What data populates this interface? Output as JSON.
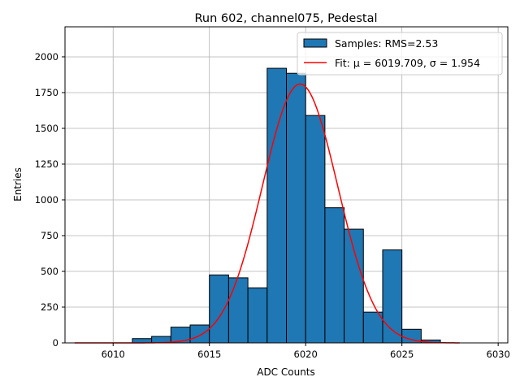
{
  "chart_data": {
    "type": "bar",
    "title": "Run 602, channel075, Pedestal",
    "xlabel": "ADC Counts",
    "ylabel": "Entries",
    "xlim": [
      6007.5,
      6030.5
    ],
    "ylim": [
      0,
      2210
    ],
    "xticks": [
      6010,
      6015,
      6020,
      6025,
      6030
    ],
    "yticks": [
      0,
      250,
      500,
      750,
      1000,
      1250,
      1500,
      1750,
      2000
    ],
    "grid": true,
    "legend_position": "top-right",
    "histogram": {
      "name": "Samples: RMS=2.53",
      "color": "#1f77b4",
      "bin_width": 1,
      "bin_starts": [
        6011,
        6012,
        6013,
        6014,
        6015,
        6016,
        6017,
        6018,
        6019,
        6020,
        6021,
        6022,
        6023,
        6024,
        6025,
        6026
      ],
      "counts": [
        30,
        45,
        110,
        125,
        475,
        455,
        385,
        1920,
        1885,
        1590,
        945,
        795,
        215,
        650,
        95,
        20
      ]
    },
    "fit": {
      "name": "Fit: μ = 6019.709, σ = 1.954",
      "color": "#ff0000",
      "mu": 6019.709,
      "sigma": 1.954,
      "amplitude": 1810,
      "x_range": [
        6008,
        6028
      ]
    }
  }
}
